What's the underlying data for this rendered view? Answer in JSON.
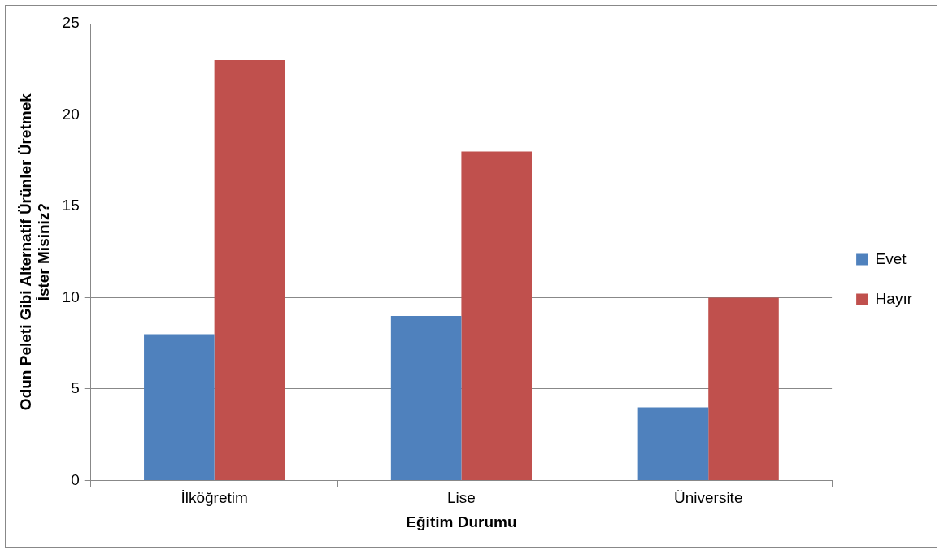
{
  "chart_data": {
    "type": "bar",
    "xlabel": "Eğitim Durumu",
    "ylabel": "Odun Peleti Gibi Alternatif Ürünler Üretmek İster Misiniz?",
    "categories": [
      "İlköğretim",
      "Lise",
      "Üniversite"
    ],
    "series": [
      {
        "name": "Evet",
        "color": "#4f81bd",
        "values": [
          8,
          9,
          4
        ]
      },
      {
        "name": "Hayır",
        "color": "#c0504d",
        "values": [
          23,
          18,
          10
        ]
      }
    ],
    "ylim": [
      0,
      25
    ],
    "yticks": [
      0,
      5,
      10,
      15,
      20,
      25
    ],
    "grid": "y",
    "legend": "right"
  }
}
